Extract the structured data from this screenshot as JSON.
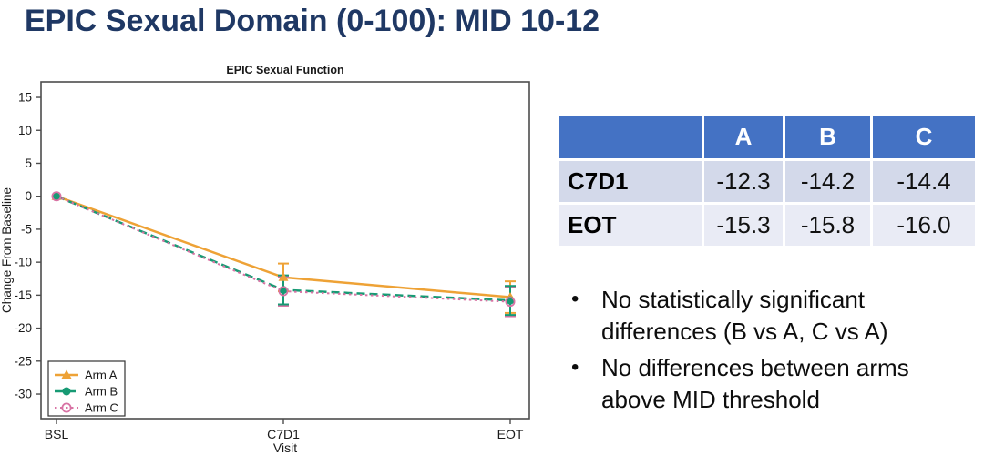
{
  "slide": {
    "title": "EPIC Sexual Domain (0-100): MID 10-12"
  },
  "colors": {
    "title_text": "#1F3864",
    "table_header_bg": "#4472C4",
    "table_row1_bg": "#D3D9EA",
    "table_row2_bg": "#E9EBF5",
    "axis_border": "#4D4D4D",
    "arm_a": "#EEA236",
    "arm_b": "#179A74",
    "arm_c": "#D873A4"
  },
  "chart_data": {
    "type": "line",
    "title": "EPIC Sexual Function",
    "xlabel": "Visit",
    "ylabel": "Change From Baseline",
    "categories": [
      "BSL",
      "C7D1",
      "EOT"
    ],
    "ylim": [
      -30,
      15
    ],
    "yticks": [
      15,
      10,
      5,
      0,
      -5,
      -10,
      -15,
      -20,
      -25,
      -30
    ],
    "grid": false,
    "legend_position": "bottom-left",
    "series": [
      {
        "name": "Arm A",
        "color": "#EEA236",
        "line_style": "solid",
        "marker": "triangle",
        "values": [
          0,
          -12.3,
          -15.3
        ],
        "error_high": [
          null,
          -10.2,
          -12.9
        ],
        "error_low": [
          null,
          -14.4,
          -17.7
        ]
      },
      {
        "name": "Arm B",
        "color": "#179A74",
        "line_style": "dashed",
        "marker": "circle",
        "values": [
          0,
          -14.2,
          -15.8
        ],
        "error_high": [
          null,
          -12.0,
          -13.6
        ],
        "error_low": [
          null,
          -16.4,
          -18.0
        ]
      },
      {
        "name": "Arm C",
        "color": "#D873A4",
        "line_style": "dotted",
        "marker": "open-circle",
        "values": [
          0,
          -14.4,
          -16.0
        ],
        "error_high": [
          null,
          -12.2,
          -13.8
        ],
        "error_low": [
          null,
          -16.6,
          -18.2
        ]
      }
    ]
  },
  "table": {
    "headers": [
      "",
      "A",
      "B",
      "C"
    ],
    "rows": [
      {
        "label": "C7D1",
        "values": [
          "-12.3",
          "-14.2",
          "-14.4"
        ]
      },
      {
        "label": "EOT",
        "values": [
          "-15.3",
          "-15.8",
          "-16.0"
        ]
      }
    ]
  },
  "bullets": [
    "No statistically significant differences (B vs A, C vs A)",
    "No differences between arms above MID threshold"
  ]
}
